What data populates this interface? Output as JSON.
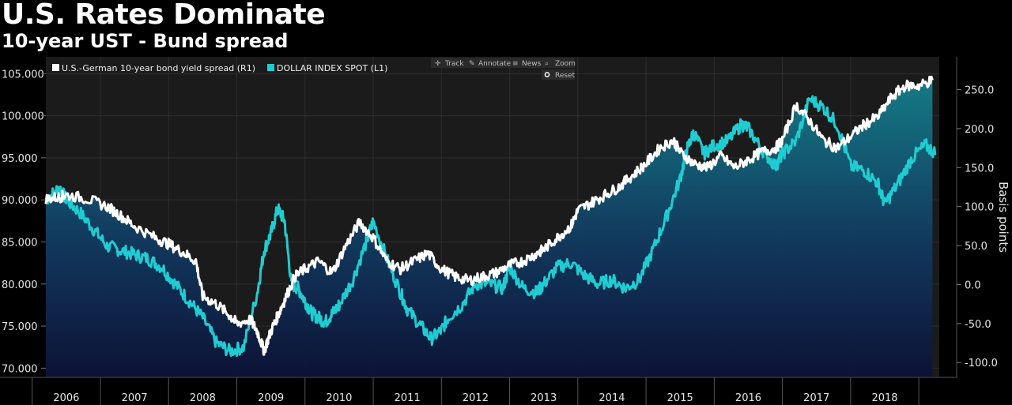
{
  "title": "U.S. Rates Dominate",
  "subtitle": "10-year UST - Bund spread",
  "toolbar": {
    "track": "Track",
    "annotate": "Annotate",
    "news": "News",
    "zoom": "Zoom",
    "reset": "Reset"
  },
  "colors": {
    "spread": "#ffffff",
    "dollar": "#1ecdd2",
    "plot_bg": "#1b1b1b",
    "fill_top": "#14808c",
    "fill_bottom": "#0c1238"
  },
  "chart_data": {
    "type": "line",
    "title": "U.S. Rates Dominate",
    "subtitle": "10-year UST - Bund spread",
    "xlabel": "",
    "x_ticks": [
      "2006",
      "2007",
      "2008",
      "2009",
      "2010",
      "2011",
      "2012",
      "2013",
      "2014",
      "2015",
      "2016",
      "2017",
      "2018"
    ],
    "xlim": [
      2005.7,
      2018.8
    ],
    "left_axis": {
      "ylim": [
        69,
        107
      ],
      "ticks": [
        "70.000",
        "75.000",
        "80.000",
        "85.000",
        "90.000",
        "95.000",
        "100.000",
        "105.000"
      ],
      "tick_values": [
        70,
        75,
        80,
        85,
        90,
        95,
        100,
        105
      ]
    },
    "right_axis": {
      "label": "Basis points",
      "ylim": [
        -118,
        292
      ],
      "ticks": [
        "-100.0",
        "-50.0",
        "0.0",
        "50.0",
        "100.0",
        "150.0",
        "200.0",
        "250.0"
      ],
      "tick_values": [
        -100,
        -50,
        0,
        50,
        100,
        150,
        200,
        250
      ]
    },
    "legend_position": "top-left",
    "grid": true,
    "series": [
      {
        "name": "U.S.-German 10-year bond yield spread (R1)",
        "axis": "right",
        "x": [
          2005.7,
          2005.9,
          2006.0,
          2006.3,
          2006.6,
          2006.8,
          2007.0,
          2007.3,
          2007.5,
          2007.7,
          2007.9,
          2008.0,
          2008.2,
          2008.4,
          2008.5,
          2008.7,
          2008.8,
          2008.9,
          2009.0,
          2009.1,
          2009.2,
          2009.35,
          2009.5,
          2009.7,
          2009.9,
          2010.1,
          2010.3,
          2010.5,
          2010.7,
          2010.9,
          2011.1,
          2011.3,
          2011.5,
          2011.7,
          2011.9,
          2012.1,
          2012.3,
          2012.5,
          2012.7,
          2012.9,
          2013.0,
          2013.2,
          2013.4,
          2013.5,
          2013.7,
          2013.9,
          2014.1,
          2014.3,
          2014.5,
          2014.7,
          2014.9,
          2015.0,
          2015.2,
          2015.4,
          2015.6,
          2015.8,
          2016.0,
          2016.2,
          2016.4,
          2016.5,
          2016.7,
          2016.9,
          2017.1,
          2017.3,
          2017.5,
          2017.7,
          2017.9,
          2018.1,
          2018.3,
          2018.5,
          2018.7
        ],
        "values": [
          110,
          112,
          115,
          110,
          100,
          88,
          75,
          60,
          52,
          42,
          30,
          -15,
          -25,
          -40,
          -50,
          -45,
          -60,
          -85,
          -60,
          -40,
          -20,
          10,
          20,
          30,
          15,
          50,
          80,
          60,
          30,
          20,
          30,
          40,
          20,
          10,
          5,
          10,
          15,
          25,
          30,
          40,
          45,
          60,
          75,
          95,
          105,
          115,
          125,
          140,
          155,
          175,
          185,
          170,
          155,
          150,
          165,
          150,
          160,
          170,
          175,
          185,
          230,
          210,
          185,
          175,
          190,
          205,
          215,
          240,
          255,
          255,
          262
        ]
      },
      {
        "name": "DOLLAR INDEX SPOT (L1)",
        "axis": "left",
        "x": [
          2005.7,
          2005.9,
          2006.0,
          2006.2,
          2006.4,
          2006.6,
          2006.8,
          2007.0,
          2007.2,
          2007.4,
          2007.6,
          2007.8,
          2008.0,
          2008.2,
          2008.4,
          2008.6,
          2008.8,
          2008.9,
          2009.0,
          2009.1,
          2009.2,
          2009.3,
          2009.4,
          2009.5,
          2009.6,
          2009.7,
          2009.8,
          2009.9,
          2010.0,
          2010.2,
          2010.4,
          2010.5,
          2010.7,
          2010.9,
          2011.0,
          2011.2,
          2011.35,
          2011.5,
          2011.6,
          2011.8,
          2012.0,
          2012.2,
          2012.4,
          2012.5,
          2012.7,
          2012.9,
          2013.0,
          2013.2,
          2013.4,
          2013.6,
          2013.8,
          2014.0,
          2014.2,
          2014.4,
          2014.6,
          2014.8,
          2015.0,
          2015.1,
          2015.2,
          2015.35,
          2015.5,
          2015.7,
          2015.9,
          2016.0,
          2016.2,
          2016.4,
          2016.5,
          2016.7,
          2016.9,
          2017.1,
          2017.3,
          2017.5,
          2017.7,
          2017.9,
          2018.0,
          2018.2,
          2018.4,
          2018.6,
          2018.75
        ],
        "values": [
          90.0,
          91.5,
          90.0,
          88.5,
          86.5,
          84.5,
          84.0,
          83.5,
          83.0,
          82.0,
          80.0,
          78.0,
          76.0,
          73.0,
          72.0,
          72.5,
          79.0,
          84.0,
          86.0,
          89.0,
          87.5,
          80.0,
          79.5,
          78.0,
          76.5,
          76.0,
          75.5,
          76.5,
          77.5,
          80.5,
          85.0,
          87.5,
          83.0,
          79.0,
          77.0,
          75.0,
          73.5,
          74.5,
          76.0,
          77.5,
          80.0,
          80.0,
          79.5,
          82.0,
          79.5,
          79.0,
          80.0,
          82.0,
          82.5,
          81.0,
          80.0,
          80.5,
          79.5,
          80.5,
          84.0,
          88.0,
          92.5,
          96.0,
          98.0,
          95.5,
          96.5,
          97.0,
          99.0,
          98.5,
          96.0,
          94.0,
          95.5,
          97.0,
          102.0,
          101.0,
          99.0,
          94.0,
          93.5,
          92.0,
          89.5,
          92.0,
          95.0,
          96.5,
          95.5
        ]
      }
    ]
  }
}
